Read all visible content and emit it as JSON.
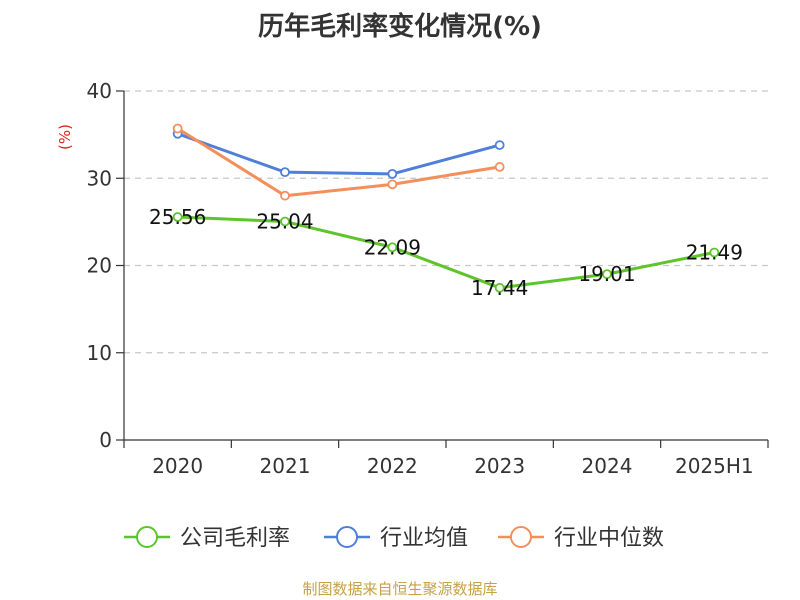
{
  "title": "历年毛利率变化情况(%)",
  "unit": "(%)",
  "source": "制图数据来自恒生聚源数据库",
  "chart_data": {
    "type": "line",
    "categories": [
      "2020",
      "2021",
      "2022",
      "2023",
      "2024",
      "2025H1"
    ],
    "ylim": [
      0,
      40
    ],
    "yticks": [
      0,
      10,
      20,
      30,
      40
    ],
    "grid": true,
    "legend_position": "bottom",
    "series": [
      {
        "name": "公司毛利率",
        "color": "#5ec42c",
        "values": [
          25.56,
          25.04,
          22.09,
          17.44,
          19.01,
          21.49
        ],
        "labels": [
          "25.56",
          "25.04",
          "22.09",
          "17.44",
          "19.01",
          "21.49"
        ]
      },
      {
        "name": "行业均值",
        "color": "#4f7fd9",
        "values": [
          35.1,
          30.7,
          30.5,
          33.8,
          null,
          null
        ]
      },
      {
        "name": "行业中位数",
        "color": "#f48f5c",
        "values": [
          35.7,
          28.0,
          29.3,
          31.3,
          null,
          null
        ]
      }
    ]
  }
}
